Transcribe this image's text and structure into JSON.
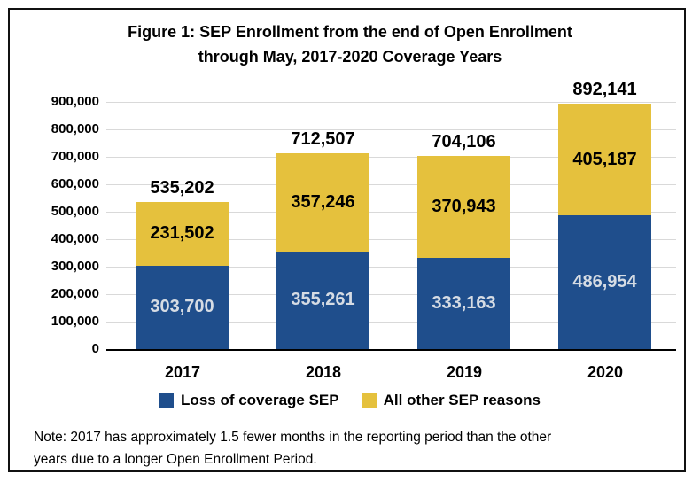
{
  "figure": {
    "title_line1": "Figure 1: SEP Enrollment from the end of Open Enrollment",
    "title_line2": "through May, 2017-2020 Coverage Years",
    "note_line1": "Note: 2017 has approximately 1.5 fewer months in the reporting period than the other",
    "note_line2": "years due to a longer Open Enrollment Period."
  },
  "colors": {
    "loss_blue": "#1F4E8C",
    "other_gold": "#E5C13D",
    "blue_label_text": "#D6DCE4",
    "gold_label_text": "#000000",
    "gridline": "#D9D9D9",
    "axis": "#000000",
    "frame_border": "#111111"
  },
  "chart_data": {
    "type": "bar",
    "stacked": true,
    "title": "Figure 1: SEP Enrollment from the end of Open Enrollment through May, 2017-2020 Coverage Years",
    "categories": [
      "2017",
      "2018",
      "2019",
      "2020"
    ],
    "series": [
      {
        "name": "Loss of coverage SEP",
        "color": "#1F4E8C",
        "values": [
          303700,
          355261,
          333163,
          486954
        ],
        "labels": [
          "303,700",
          "355,261",
          "333,163",
          "486,954"
        ]
      },
      {
        "name": "All other SEP reasons",
        "color": "#E5C13D",
        "values": [
          231502,
          357246,
          370943,
          405187
        ],
        "labels": [
          "231,502",
          "357,246",
          "370,943",
          "405,187"
        ]
      }
    ],
    "totals": [
      535202,
      712507,
      704106,
      892141
    ],
    "total_labels": [
      "535,202",
      "712,507",
      "704,106",
      "892,141"
    ],
    "ylim": [
      0,
      900000
    ],
    "y_tick_step": 100000,
    "y_ticks": [
      "900,000",
      "800,000",
      "700,000",
      "600,000",
      "500,000",
      "400,000",
      "300,000",
      "200,000",
      "100,000",
      "0"
    ],
    "grid": true,
    "legend_position": "bottom",
    "note": "Note: 2017 has approximately 1.5 fewer months in the reporting period than the other years due to a longer Open Enrollment Period."
  },
  "legend": {
    "items": [
      {
        "label": "Loss of coverage SEP",
        "color": "#1F4E8C"
      },
      {
        "label": "All other SEP reasons",
        "color": "#E5C13D"
      }
    ]
  }
}
